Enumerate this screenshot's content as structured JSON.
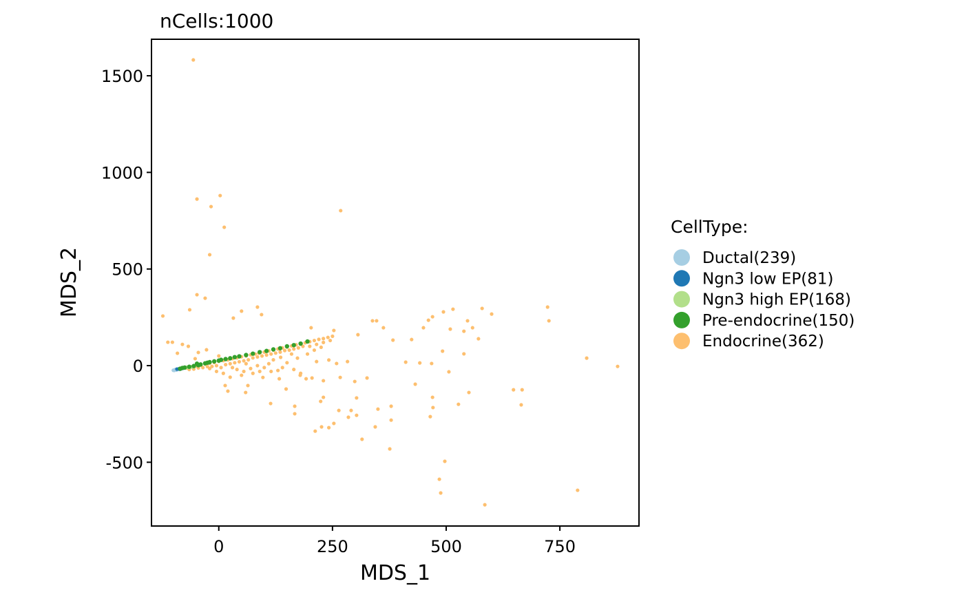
{
  "chart_data": {
    "type": "scatter",
    "title": "nCells:1000",
    "xlabel": "MDS_1",
    "ylabel": "MDS_2",
    "xlim": [
      -148,
      924
    ],
    "ylim": [
      -830,
      1689
    ],
    "xticks": [
      0,
      250,
      500,
      750
    ],
    "yticks": [
      -500,
      0,
      500,
      1000,
      1500
    ],
    "grid": false,
    "legend": {
      "title": "CellType:",
      "placement": "right"
    },
    "series": [
      {
        "name": "Ductal(239)",
        "color": "#A6CEE3",
        "points": [
          [
            -100,
            -24
          ],
          [
            -97,
            -22
          ],
          [
            -95,
            -20
          ],
          [
            -92,
            -21
          ],
          [
            -90,
            -18
          ],
          [
            -88,
            -19
          ],
          [
            -85,
            -17
          ],
          [
            -83,
            -16
          ],
          [
            -80,
            -15
          ],
          [
            -98,
            -25
          ],
          [
            -93,
            -23
          ],
          [
            -87,
            -20
          ],
          [
            -78,
            -14
          ],
          [
            -75,
            -13
          ]
        ]
      },
      {
        "name": "Ngn3 low EP(81)",
        "color": "#1F78B4",
        "points": [
          [
            -92,
            -18
          ],
          [
            -88,
            -17
          ],
          [
            -86,
            -15
          ],
          [
            -84,
            -18
          ]
        ]
      },
      {
        "name": "Ngn3 high EP(168)",
        "color": "#B2DF8A",
        "points": [
          [
            -82,
            -13
          ],
          [
            -78,
            -10
          ],
          [
            -74,
            -12
          ],
          [
            -70,
            -8
          ],
          [
            -66,
            -10
          ],
          [
            -62,
            -6
          ],
          [
            -58,
            -8
          ],
          [
            -54,
            -4
          ]
        ]
      },
      {
        "name": "Pre-endocrine(150)",
        "color": "#33A02C",
        "points": [
          [
            -85,
            -16
          ],
          [
            -80,
            -12
          ],
          [
            -75,
            -10
          ],
          [
            -65,
            -6
          ],
          [
            -55,
            -2
          ],
          [
            -48,
            10
          ],
          [
            -45,
            2
          ],
          [
            -40,
            6
          ],
          [
            -30,
            12
          ],
          [
            -25,
            15
          ],
          [
            -20,
            18
          ],
          [
            -10,
            22
          ],
          [
            0,
            26
          ],
          [
            5,
            30
          ],
          [
            15,
            34
          ],
          [
            25,
            38
          ],
          [
            35,
            44
          ],
          [
            45,
            48
          ],
          [
            60,
            55
          ],
          [
            75,
            62
          ],
          [
            90,
            70
          ],
          [
            105,
            76
          ],
          [
            120,
            84
          ],
          [
            135,
            90
          ],
          [
            150,
            100
          ],
          [
            165,
            106
          ],
          [
            180,
            114
          ],
          [
            195,
            125
          ]
        ]
      },
      {
        "name": "Endocrine(362)",
        "color": "#FDBF6F",
        "points": [
          [
            -56,
            1582
          ],
          [
            -48,
            862
          ],
          [
            3,
            880
          ],
          [
            -17,
            823
          ],
          [
            12,
            716
          ],
          [
            -20,
            574
          ],
          [
            268,
            802
          ],
          [
            -48,
            367
          ],
          [
            -30,
            349
          ],
          [
            -123,
            257
          ],
          [
            -64,
            289
          ],
          [
            50,
            282
          ],
          [
            85,
            303
          ],
          [
            94,
            264
          ],
          [
            32,
            246
          ],
          [
            203,
            196
          ],
          [
            253,
            182
          ],
          [
            338,
            232
          ],
          [
            347,
            232
          ],
          [
            362,
            196
          ],
          [
            383,
            132
          ],
          [
            424,
            135
          ],
          [
            450,
            196
          ],
          [
            461,
            235
          ],
          [
            470,
            253
          ],
          [
            494,
            278
          ],
          [
            515,
            292
          ],
          [
            547,
            232
          ],
          [
            558,
            196
          ],
          [
            579,
            296
          ],
          [
            600,
            267
          ],
          [
            539,
            178
          ],
          [
            571,
            139
          ],
          [
            509,
            189
          ],
          [
            723,
            303
          ],
          [
            726,
            232
          ],
          [
            809,
            39
          ],
          [
            877,
            -4
          ],
          [
            667,
            -125
          ],
          [
            648,
            -125
          ],
          [
            665,
            -203
          ],
          [
            527,
            -200
          ],
          [
            550,
            -139
          ],
          [
            506,
            -32
          ],
          [
            492,
            75
          ],
          [
            539,
            61
          ],
          [
            411,
            18
          ],
          [
            442,
            14
          ],
          [
            468,
            11
          ],
          [
            432,
            -96
          ],
          [
            470,
            -164
          ],
          [
            465,
            -264
          ],
          [
            471,
            -217
          ],
          [
            497,
            -495
          ],
          [
            485,
            -588
          ],
          [
            488,
            -659
          ],
          [
            585,
            -720
          ],
          [
            789,
            -645
          ],
          [
            379,
            -210
          ],
          [
            379,
            -282
          ],
          [
            376,
            -431
          ],
          [
            350,
            -225
          ],
          [
            344,
            -317
          ],
          [
            315,
            -381
          ],
          [
            303,
            -167
          ],
          [
            291,
            -232
          ],
          [
            303,
            -257
          ],
          [
            285,
            -267
          ],
          [
            264,
            -232
          ],
          [
            253,
            -299
          ],
          [
            242,
            -321
          ],
          [
            226,
            -317
          ],
          [
            212,
            -339
          ],
          [
            224,
            -185
          ],
          [
            230,
            -164
          ],
          [
            167,
            -210
          ],
          [
            167,
            -249
          ],
          [
            114,
            -196
          ],
          [
            59,
            -139
          ],
          [
            64,
            -103
          ],
          [
            97,
            -61
          ],
          [
            14,
            -103
          ],
          [
            20,
            -132
          ],
          [
            230,
            -78
          ],
          [
            267,
            -61
          ],
          [
            299,
            -82
          ],
          [
            326,
            -64
          ],
          [
            205,
            -64
          ],
          [
            192,
            -68
          ],
          [
            133,
            -68
          ],
          [
            148,
            -121
          ],
          [
            179,
            -50
          ],
          [
            259,
            11
          ],
          [
            283,
            21
          ],
          [
            306,
            160
          ],
          [
            88,
            64
          ],
          [
            136,
            43
          ],
          [
            173,
            39
          ],
          [
            215,
            21
          ],
          [
            242,
            29
          ],
          [
            -27,
            82
          ],
          [
            -112,
            121
          ],
          [
            -102,
            121
          ],
          [
            -80,
            110
          ],
          [
            -67,
            100
          ],
          [
            -91,
            64
          ],
          [
            -52,
            36
          ],
          [
            -45,
            68
          ],
          [
            -70,
            -12
          ],
          [
            -60,
            -6
          ],
          [
            -50,
            -2
          ],
          [
            -40,
            2
          ],
          [
            -30,
            8
          ],
          [
            -20,
            12
          ],
          [
            -10,
            16
          ],
          [
            0,
            22
          ],
          [
            10,
            26
          ],
          [
            20,
            30
          ],
          [
            30,
            36
          ],
          [
            40,
            40
          ],
          [
            50,
            46
          ],
          [
            60,
            50
          ],
          [
            70,
            56
          ],
          [
            80,
            60
          ],
          [
            90,
            66
          ],
          [
            100,
            70
          ],
          [
            110,
            76
          ],
          [
            120,
            80
          ],
          [
            130,
            86
          ],
          [
            140,
            92
          ],
          [
            150,
            96
          ],
          [
            160,
            102
          ],
          [
            170,
            108
          ],
          [
            180,
            112
          ],
          [
            190,
            118
          ],
          [
            200,
            124
          ],
          [
            210,
            130
          ],
          [
            220,
            136
          ],
          [
            230,
            140
          ],
          [
            240,
            146
          ],
          [
            250,
            152
          ],
          [
            -65,
            -20
          ],
          [
            -55,
            -18
          ],
          [
            -45,
            -12
          ],
          [
            -35,
            -10
          ],
          [
            -25,
            -5
          ],
          [
            -15,
            -4
          ],
          [
            -5,
            0
          ],
          [
            5,
            -10
          ],
          [
            15,
            5
          ],
          [
            25,
            10
          ],
          [
            35,
            15
          ],
          [
            45,
            20
          ],
          [
            55,
            25
          ],
          [
            65,
            30
          ],
          [
            75,
            40
          ],
          [
            85,
            45
          ],
          [
            95,
            50
          ],
          [
            105,
            55
          ],
          [
            115,
            60
          ],
          [
            125,
            65
          ],
          [
            135,
            70
          ],
          [
            145,
            78
          ],
          [
            155,
            80
          ],
          [
            165,
            86
          ],
          [
            175,
            92
          ],
          [
            185,
            100
          ],
          [
            200,
            100
          ],
          [
            215,
            110
          ],
          [
            230,
            120
          ],
          [
            245,
            130
          ],
          [
            40,
            -20
          ],
          [
            55,
            -30
          ],
          [
            70,
            -15
          ],
          [
            85,
            0
          ],
          [
            100,
            -10
          ],
          [
            115,
            -30
          ],
          [
            130,
            -25
          ],
          [
            150,
            15
          ],
          [
            165,
            -20
          ],
          [
            180,
            -40
          ],
          [
            60,
            10
          ],
          [
            75,
            -40
          ],
          [
            10,
            -40
          ],
          [
            25,
            -60
          ],
          [
            -5,
            -30
          ],
          [
            -20,
            -15
          ],
          [
            0,
            50
          ],
          [
            30,
            -10
          ],
          [
            50,
            -50
          ],
          [
            90,
            -30
          ],
          [
            120,
            30
          ],
          [
            140,
            -10
          ],
          [
            195,
            60
          ],
          [
            210,
            80
          ],
          [
            225,
            95
          ],
          [
            160,
            60
          ],
          [
            110,
            10
          ]
        ]
      }
    ]
  }
}
